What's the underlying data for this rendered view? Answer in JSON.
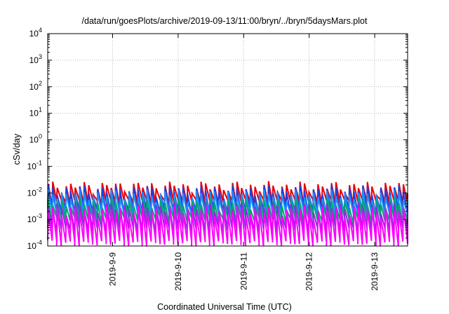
{
  "chart_data": {
    "type": "line",
    "title": "/data/run/goesPlots/archive/2019-09-13/11:00/bryn/../bryn/5daysMars.plot",
    "xlabel": "Coordinated Universal Time (UTC)",
    "ylabel": "cSv/day",
    "y_scale": "log",
    "ylim": [
      0.0001,
      10000
    ],
    "grid": true,
    "x_ticks": [
      "2019-9-9",
      "2019-9-10",
      "2019-9-11",
      "2019-9-12",
      "2019-9-13"
    ],
    "y_ticks": [
      {
        "base": "10",
        "exp": "-4"
      },
      {
        "base": "10",
        "exp": "-3"
      },
      {
        "base": "10",
        "exp": "-2"
      },
      {
        "base": "10",
        "exp": "-1"
      },
      {
        "base": "10",
        "exp": "0"
      },
      {
        "base": "10",
        "exp": "1"
      },
      {
        "base": "10",
        "exp": "2"
      },
      {
        "base": "10",
        "exp": "3"
      },
      {
        "base": "10",
        "exp": "4"
      }
    ],
    "xlim_days": [
      -0.99,
      4.44
    ],
    "series": [
      {
        "color": "#e8000b",
        "peak": 0.018,
        "trough": 0.0045
      },
      {
        "color": "#1f3fe0",
        "peak": 0.013,
        "trough": 0.002
      },
      {
        "color": "#1e90ff",
        "peak": 0.009,
        "trough": 0.0014
      },
      {
        "color": "#00a86b",
        "peak": 0.0045,
        "trough": 0.001
      },
      {
        "color": "#8a2be2",
        "peak": 0.003,
        "trough": 0.0004
      },
      {
        "color": "#ff00ff",
        "peak": 0.0022,
        "trough": 0.00013
      }
    ]
  }
}
